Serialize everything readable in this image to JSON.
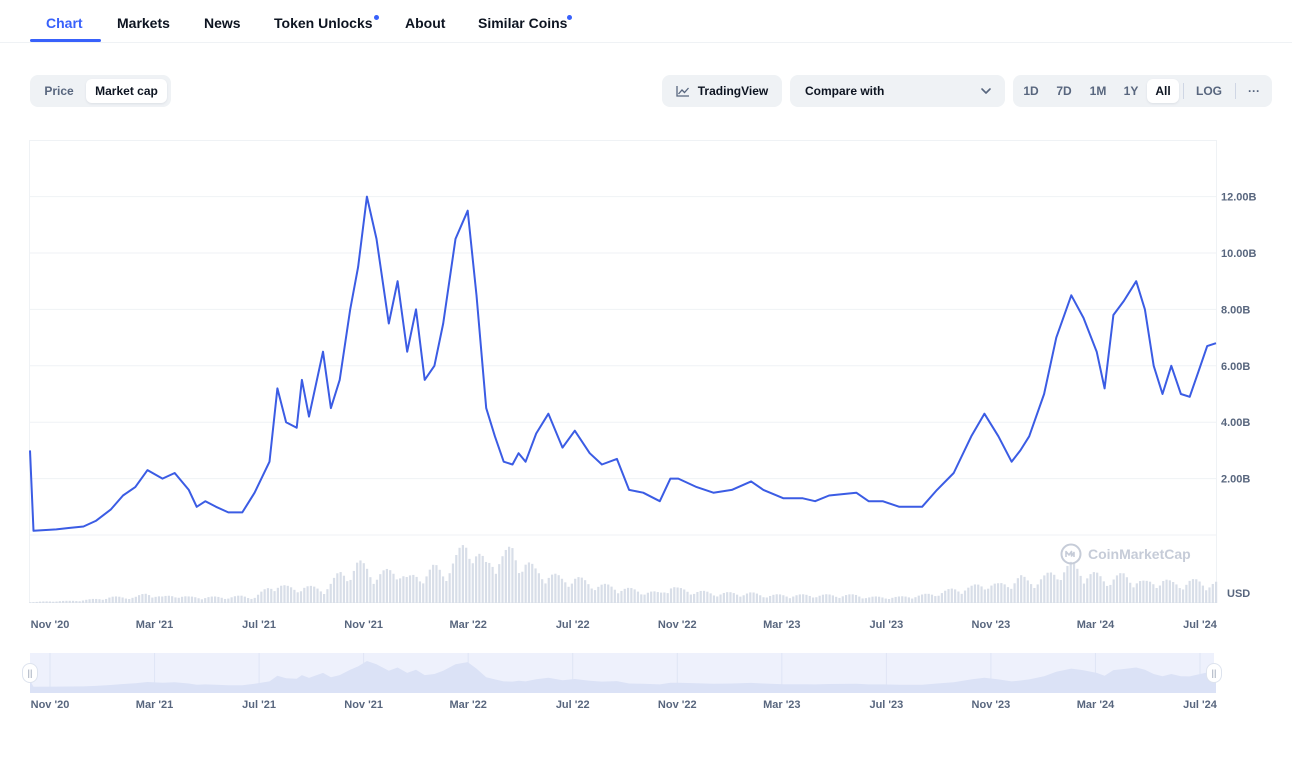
{
  "tabs": [
    {
      "label": "Chart",
      "active": true
    },
    {
      "label": "Markets"
    },
    {
      "label": "News"
    },
    {
      "label": "Token Unlocks",
      "has_dot": true
    },
    {
      "label": "About"
    },
    {
      "label": "Similar Coins",
      "has_dot": true
    }
  ],
  "mode_toggle": {
    "price_label": "Price",
    "market_cap_label": "Market cap",
    "selected": "Market cap"
  },
  "tradingview_label": "TradingView",
  "compare": {
    "label": "Compare with"
  },
  "ranges": {
    "labels": [
      "1D",
      "7D",
      "1M",
      "1Y",
      "All"
    ],
    "selected": "All",
    "log_label": "LOG",
    "more_label": "···"
  },
  "watermark": "CoinMarketCap",
  "currency_label": "USD",
  "colors": {
    "accent": "#3861fb",
    "line": "#3b5ce4",
    "grid": "#eff2f5",
    "volume": "#d8dee8",
    "navigator_fill": "#eef1fc"
  },
  "chart_data": {
    "type": "line",
    "series": [
      {
        "name": "Market cap",
        "unit": "USD"
      }
    ],
    "x": [
      "2020-11-01",
      "2020-11-05",
      "2020-12-01",
      "2020-12-15",
      "2021-01-01",
      "2021-01-15",
      "2021-02-01",
      "2021-02-15",
      "2021-03-01",
      "2021-03-15",
      "2021-04-01",
      "2021-04-15",
      "2021-05-01",
      "2021-05-10",
      "2021-05-20",
      "2021-06-01",
      "2021-06-15",
      "2021-07-01",
      "2021-07-15",
      "2021-08-01",
      "2021-08-10",
      "2021-08-20",
      "2021-09-01",
      "2021-09-07",
      "2021-09-15",
      "2021-10-01",
      "2021-10-10",
      "2021-10-20",
      "2021-11-01",
      "2021-11-10",
      "2021-11-20",
      "2021-12-01",
      "2021-12-15",
      "2021-12-25",
      "2022-01-05",
      "2022-01-15",
      "2022-01-25",
      "2022-02-05",
      "2022-02-15",
      "2022-03-01",
      "2022-03-15",
      "2022-03-25",
      "2022-04-05",
      "2022-04-15",
      "2022-04-25",
      "2022-05-05",
      "2022-05-12",
      "2022-05-20",
      "2022-06-01",
      "2022-06-15",
      "2022-07-01",
      "2022-07-15",
      "2022-08-01",
      "2022-08-15",
      "2022-09-01",
      "2022-09-15",
      "2022-10-01",
      "2022-10-20",
      "2022-11-01",
      "2022-11-10",
      "2022-12-01",
      "2022-12-20",
      "2023-01-10",
      "2023-02-01",
      "2023-02-15",
      "2023-03-10",
      "2023-04-01",
      "2023-04-15",
      "2023-05-01",
      "2023-06-01",
      "2023-06-15",
      "2023-07-01",
      "2023-07-20",
      "2023-08-15",
      "2023-09-01",
      "2023-09-20",
      "2023-10-10",
      "2023-10-25",
      "2023-11-10",
      "2023-11-25",
      "2023-12-05",
      "2023-12-15",
      "2024-01-01",
      "2024-01-15",
      "2024-02-01",
      "2024-02-15",
      "2024-03-01",
      "2024-03-10",
      "2024-03-20",
      "2024-04-01",
      "2024-04-15",
      "2024-04-25",
      "2024-05-05",
      "2024-05-15",
      "2024-05-25",
      "2024-06-05",
      "2024-06-15",
      "2024-06-25",
      "2024-07-05",
      "2024-07-15"
    ],
    "values": [
      3.0,
      0.15,
      0.2,
      0.25,
      0.3,
      0.5,
      0.9,
      1.4,
      1.7,
      2.3,
      2.0,
      2.2,
      1.6,
      1.0,
      1.2,
      1.0,
      0.8,
      0.8,
      1.5,
      2.6,
      5.2,
      4.0,
      3.8,
      5.5,
      4.2,
      6.5,
      4.5,
      5.5,
      8.0,
      9.5,
      12.0,
      10.5,
      7.5,
      9.0,
      6.5,
      8.0,
      5.5,
      6.0,
      7.5,
      10.5,
      11.5,
      8.5,
      4.5,
      3.5,
      2.6,
      2.5,
      2.9,
      2.6,
      3.6,
      4.3,
      3.1,
      3.7,
      2.9,
      2.5,
      2.7,
      1.6,
      1.5,
      1.2,
      2.0,
      2.0,
      1.7,
      1.5,
      1.6,
      1.9,
      1.6,
      1.3,
      1.3,
      1.2,
      1.4,
      1.5,
      1.2,
      1.2,
      1.0,
      1.0,
      1.6,
      2.2,
      3.5,
      4.3,
      3.5,
      2.6,
      3.0,
      3.5,
      5.0,
      7.0,
      8.5,
      7.7,
      6.5,
      5.2,
      7.8,
      8.3,
      9.0,
      8.0,
      6.0,
      5.0,
      6.0,
      5.0,
      4.9,
      5.8,
      6.7,
      6.8
    ],
    "volume": [
      0.05,
      0.05,
      0.1,
      0.1,
      0.15,
      0.2,
      0.3,
      0.3,
      0.3,
      0.5,
      0.3,
      0.4,
      0.3,
      0.3,
      0.3,
      0.3,
      0.3,
      0.35,
      0.3,
      0.8,
      1.0,
      0.8,
      0.7,
      0.9,
      0.8,
      0.7,
      1.0,
      1.5,
      1.6,
      2.0,
      1.8,
      1.4,
      1.6,
      1.8,
      1.2,
      1.4,
      1.5,
      1.8,
      1.6,
      2.2,
      3.2,
      2.6,
      1.9,
      2.4,
      2.4,
      2.7,
      2.2,
      2.1,
      1.6,
      1.5,
      1.2,
      1.3,
      1.0,
      0.9,
      0.8,
      0.7,
      0.6,
      0.5,
      0.9,
      0.7,
      0.6,
      0.5,
      0.5,
      0.5,
      0.4,
      0.4,
      0.4,
      0.4,
      0.4,
      0.4,
      0.3,
      0.3,
      0.3,
      0.4,
      0.5,
      0.7,
      0.8,
      1.0,
      0.9,
      1.1,
      1.3,
      1.1,
      1.3,
      1.6,
      1.9,
      1.6,
      1.4,
      1.2,
      1.3,
      1.4,
      1.2,
      1.0,
      1.1,
      1.2,
      1.0,
      1.0,
      1.1,
      1.1,
      1.0,
      1.0
    ],
    "x_ticks": [
      "Nov '20",
      "Mar '21",
      "Jul '21",
      "Nov '21",
      "Mar '22",
      "Jul '22",
      "Nov '22",
      "Mar '23",
      "Jul '23",
      "Nov '23",
      "Mar '24",
      "Jul '24"
    ],
    "y_ticks": [
      "2.00B",
      "4.00B",
      "6.00B",
      "8.00B",
      "10.00B",
      "12.00B"
    ],
    "ylim": [
      0,
      14
    ],
    "y_unit": "B USD",
    "grid": true
  }
}
